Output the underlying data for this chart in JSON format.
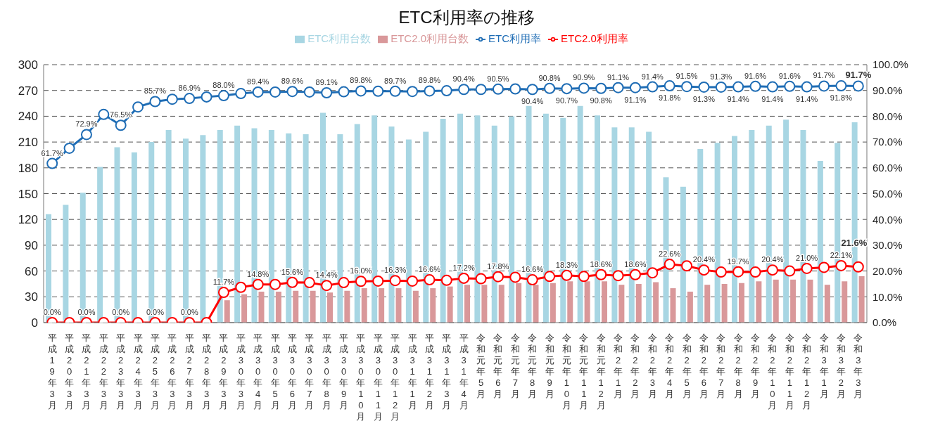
{
  "chart_data": {
    "type": "bar",
    "title": "ETC利用率の推移",
    "categories": [
      "平成19年3月",
      "平成20年3月",
      "平成21年3月",
      "平成22年3月",
      "平成23年3月",
      "平成24年3月",
      "平成25年3月",
      "平成26年3月",
      "平成27年3月",
      "平成28年3月",
      "平成29年3月",
      "平成30年3月",
      "平成30年4月",
      "平成30年5月",
      "平成30年6月",
      "平成30年7月",
      "平成30年8月",
      "平成30年9月",
      "平成30年10月",
      "平成30年11月",
      "平成30年12月",
      "平成31年1月",
      "平成31年2月",
      "平成31年3月",
      "平成31年4月",
      "令和元年5月",
      "令和元年6月",
      "令和元年7月",
      "令和元年8月",
      "令和元年9月",
      "令和元年10月",
      "令和元年11月",
      "令和元年12月",
      "令和2年1月",
      "令和2年2月",
      "令和2年3月",
      "令和2年4月",
      "令和2年5月",
      "令和2年6月",
      "令和2年7月",
      "令和2年8月",
      "令和2年9月",
      "令和2年10月",
      "令和2年11月",
      "令和2年12月",
      "令和3年1月",
      "令和3年2月",
      "令和3年3月"
    ],
    "series": [
      {
        "name": "ETC利用台数",
        "color": "#a8d6e3",
        "values": [
          126,
          137,
          151,
          181,
          204,
          198,
          210,
          224,
          214,
          218,
          224,
          229,
          226,
          224,
          220,
          219,
          244,
          219,
          231,
          241,
          228,
          213,
          222,
          237,
          243,
          241,
          229,
          240,
          252,
          243,
          238,
          252,
          241,
          227,
          227,
          222,
          169,
          158,
          202,
          209,
          217,
          224,
          229,
          236,
          224,
          188,
          209,
          233
        ]
      },
      {
        "name": "ETC2.0利用台数",
        "color": "#d9989a",
        "values": [
          0,
          0,
          0,
          0,
          0,
          0,
          0,
          0,
          0,
          0,
          26,
          33,
          36,
          36,
          37,
          37,
          35,
          37,
          40,
          40,
          40,
          37,
          40,
          42,
          44,
          44,
          44,
          46,
          44,
          46,
          48,
          48,
          48,
          44,
          45,
          47,
          40,
          36,
          44,
          45,
          46,
          48,
          50,
          50,
          50,
          44,
          48,
          54
        ]
      },
      {
        "name": "ETC利用率",
        "type": "line",
        "axis": "y2",
        "color": "#1f6db5",
        "values": [
          61.7,
          67.6,
          72.9,
          80.7,
          76.5,
          83.6,
          85.7,
          86.6,
          86.9,
          87.5,
          88.0,
          88.8,
          89.4,
          89.4,
          89.6,
          89.4,
          89.1,
          89.5,
          89.8,
          89.7,
          89.7,
          89.6,
          89.8,
          89.9,
          90.4,
          90.4,
          90.5,
          90.6,
          90.4,
          90.8,
          90.7,
          90.9,
          90.8,
          91.1,
          91.1,
          91.4,
          91.8,
          91.5,
          91.3,
          91.3,
          91.4,
          91.6,
          91.4,
          91.6,
          91.4,
          91.7,
          91.8,
          91.7
        ],
        "value_labels": [
          "61.7%",
          null,
          "72.9%",
          null,
          "76.5%",
          null,
          "85.7%",
          null,
          "86.9%",
          null,
          "88.0%",
          null,
          "89.4%",
          null,
          "89.6%",
          null,
          "89.1%",
          null,
          "89.8%",
          null,
          "89.7%",
          null,
          "89.8%",
          null,
          "90.4%",
          null,
          "90.5%",
          null,
          "90.4%",
          "90.8%",
          "90.7%",
          "90.9%",
          "90.8%",
          "91.1%",
          "91.1%",
          "91.4%",
          "91.8%",
          "91.5%",
          "91.3%",
          "91.3%",
          "91.4%",
          "91.6%",
          "91.4%",
          "91.6%",
          "91.4%",
          "91.7%",
          "91.8%",
          "91.7%"
        ]
      },
      {
        "name": "ETC2.0利用率",
        "type": "line",
        "axis": "y2",
        "color": "#ff0000",
        "values": [
          0,
          0,
          0,
          0,
          0,
          0,
          0,
          0,
          0,
          0,
          11.7,
          13.7,
          14.8,
          14.8,
          15.6,
          15.5,
          14.4,
          15.5,
          16.0,
          16.1,
          16.3,
          16.1,
          16.6,
          16.4,
          17.2,
          17.0,
          17.8,
          17.6,
          16.6,
          17.9,
          18.3,
          17.9,
          18.6,
          18.2,
          18.6,
          19.3,
          22.6,
          22.0,
          20.4,
          19.6,
          19.7,
          19.6,
          20.4,
          20.0,
          21.0,
          21.4,
          22.1,
          21.6
        ],
        "value_labels": [
          "0.0%",
          null,
          "0.0%",
          null,
          "0.0%",
          null,
          "0.0%",
          null,
          "0.0%",
          null,
          "11.7%",
          null,
          "14.8%",
          null,
          "15.6%",
          null,
          "14.4%",
          null,
          "16.0%",
          null,
          "16.3%",
          null,
          "16.6%",
          null,
          "17.2%",
          null,
          "17.8%",
          null,
          "16.6%",
          null,
          "18.3%",
          null,
          "18.6%",
          null,
          "18.6%",
          null,
          "22.6%",
          null,
          "20.4%",
          null,
          "19.7%",
          null,
          "20.4%",
          null,
          "21.0%",
          null,
          "22.1%",
          "21.6%"
        ]
      }
    ],
    "ylim": [
      0,
      300
    ],
    "yticks": [
      0,
      30,
      60,
      90,
      120,
      150,
      180,
      210,
      240,
      270,
      300
    ],
    "y2lim": [
      0,
      100
    ],
    "y2ticks": [
      {
        "value": 0,
        "label": "0.0%"
      },
      {
        "value": 10,
        "label": "10.0%"
      },
      {
        "value": 20,
        "label": "20.0%"
      },
      {
        "value": 30,
        "label": "30.0%"
      },
      {
        "value": 40,
        "label": "40.0%"
      },
      {
        "value": 50,
        "label": "50.0%"
      },
      {
        "value": 60,
        "label": "60.0%"
      },
      {
        "value": 70,
        "label": "70.0%"
      },
      {
        "value": 80,
        "label": "80.0%"
      },
      {
        "value": 90,
        "label": "90.0%"
      },
      {
        "value": 100,
        "label": "100.0%"
      }
    ],
    "grid": "y",
    "legend": "top",
    "marker": "circle",
    "line_style": "solid"
  }
}
